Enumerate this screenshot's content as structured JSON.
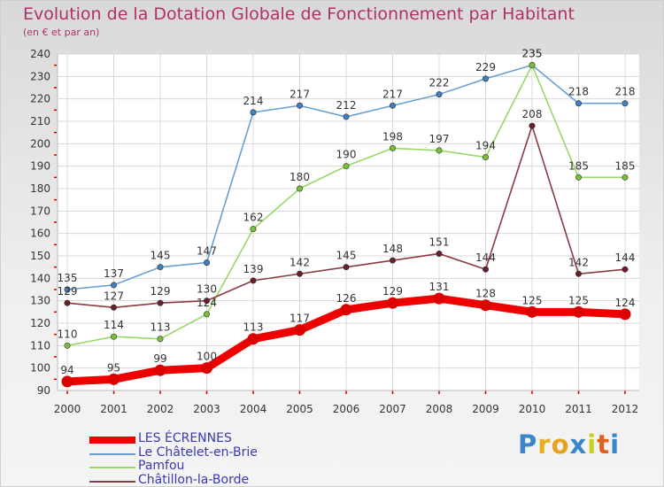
{
  "header": {
    "title": "Evolution de la Dotation Globale de Fonctionnement par Habitant",
    "subtitle": "(en € et par an)"
  },
  "chart_data": {
    "type": "line",
    "title": "Evolution de la Dotation Globale de Fonctionnement par Habitant",
    "subtitle": "(en € et par an)",
    "xlabel": "",
    "ylabel": "",
    "ylim": [
      90,
      240
    ],
    "ytick_step": 10,
    "grid": true,
    "legend_position": "bottom-left",
    "categories": [
      "2000",
      "2001",
      "2002",
      "2003",
      "2004",
      "2005",
      "2006",
      "2007",
      "2008",
      "2009",
      "2010",
      "2011",
      "2012"
    ],
    "series": [
      {
        "name": "LES ÉCRENNES",
        "color": "#ee0000",
        "marker": "#dd0000",
        "bold": true,
        "values": [
          94,
          95,
          99,
          100,
          113,
          117,
          126,
          129,
          131,
          128,
          125,
          125,
          124
        ]
      },
      {
        "name": "Le Châtelet-en-Brie",
        "color": "#6a9fd0",
        "marker": "#3f7fc0",
        "bold": false,
        "values": [
          135,
          137,
          145,
          147,
          214,
          217,
          212,
          217,
          222,
          229,
          235,
          218,
          218
        ]
      },
      {
        "name": "Pamfou",
        "color": "#99d866",
        "marker": "#77c03a",
        "bold": false,
        "values": [
          110,
          114,
          113,
          124,
          162,
          180,
          190,
          198,
          197,
          194,
          235,
          185,
          185
        ]
      },
      {
        "name": "Châtillon-la-Borde",
        "color": "#8a3a42",
        "marker": "#6a1e28",
        "bold": false,
        "values": [
          129,
          127,
          129,
          130,
          139,
          142,
          145,
          148,
          151,
          144,
          208,
          142,
          144
        ]
      }
    ]
  },
  "logo": {
    "text": "Proxiti",
    "letter_colors": [
      "#3a86c8",
      "#e8b020",
      "#e8a020",
      "#3a86c8",
      "#c8d020",
      "#e06020",
      "#3a86c8"
    ]
  }
}
